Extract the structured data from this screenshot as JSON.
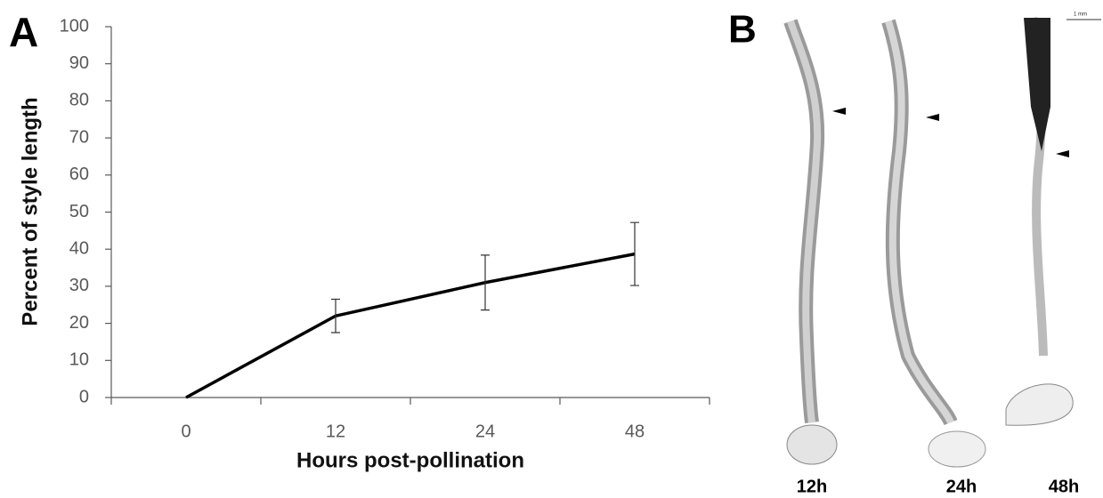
{
  "chart_data": {
    "type": "line",
    "panel_label": "A",
    "xlabel": "Hours post-pollination",
    "ylabel": "Percent of style length",
    "categories": [
      "0",
      "12",
      "24",
      "48"
    ],
    "values": [
      0,
      22,
      31,
      38.7
    ],
    "errors": [
      0,
      4.5,
      7.4,
      8.5
    ],
    "color": "#000000",
    "ylim": [
      0,
      100
    ],
    "yticks": [
      0,
      10,
      20,
      30,
      40,
      50,
      60,
      70,
      80,
      90,
      100
    ]
  },
  "panel_b": {
    "label": "B",
    "scale_bar": "1 mm",
    "images": [
      "12h",
      "24h",
      "48h"
    ]
  }
}
